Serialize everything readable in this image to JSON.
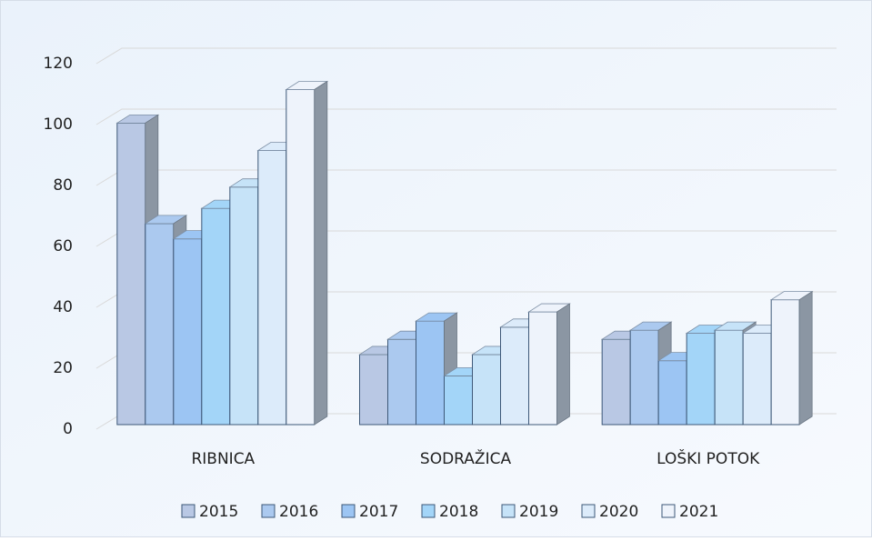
{
  "chart_data": {
    "type": "bar3d",
    "categories": [
      "RIBNICA",
      "SODRAŽICA",
      "LOŠKI POTOK"
    ],
    "series": [
      {
        "name": "2015",
        "color": "#b9c8e4",
        "values": [
          99,
          23,
          28
        ]
      },
      {
        "name": "2016",
        "color": "#abc9ef",
        "values": [
          66,
          28,
          31
        ]
      },
      {
        "name": "2017",
        "color": "#9cc5f3",
        "values": [
          61,
          34,
          21
        ]
      },
      {
        "name": "2018",
        "color": "#a3d5f8",
        "values": [
          71,
          16,
          30
        ]
      },
      {
        "name": "2019",
        "color": "#c6e3f8",
        "values": [
          78,
          23,
          31
        ]
      },
      {
        "name": "2020",
        "color": "#dcebfa",
        "values": [
          90,
          32,
          30
        ]
      },
      {
        "name": "2021",
        "color": "#eef3fb",
        "values": [
          110,
          37,
          41
        ]
      }
    ],
    "ylim": [
      0,
      120
    ],
    "yticks": [
      0,
      20,
      40,
      60,
      80,
      100,
      120
    ],
    "grid": true,
    "legend": "bottom"
  }
}
